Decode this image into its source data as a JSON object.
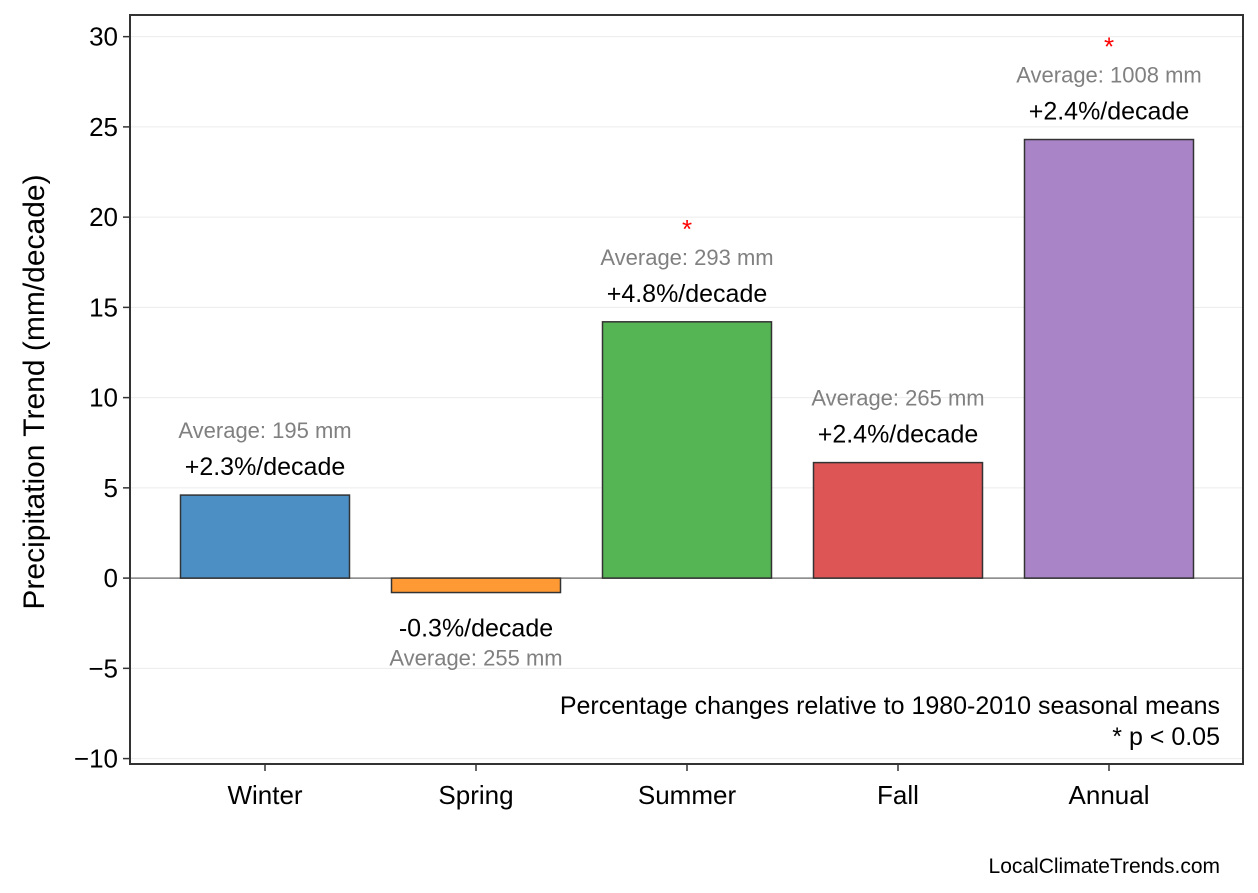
{
  "chart_data": {
    "type": "bar",
    "categories": [
      "Winter",
      "Spring",
      "Summer",
      "Fall",
      "Annual"
    ],
    "values": [
      4.6,
      -0.8,
      14.2,
      6.4,
      24.3
    ],
    "colors": [
      "#4b8fc4",
      "#ff9933",
      "#55b555",
      "#dd5555",
      "#a985c8"
    ],
    "percent_labels": [
      "+2.3%/decade",
      "-0.3%/decade",
      "+4.8%/decade",
      "+2.4%/decade",
      "+2.4%/decade"
    ],
    "average_labels": [
      "Average: 195 mm",
      "Average: 255 mm",
      "Average: 293 mm",
      "Average: 265 mm",
      "Average: 1008 mm"
    ],
    "significant": [
      false,
      false,
      true,
      false,
      true
    ],
    "significance_marker": "*",
    "significance_color": "#ff0000",
    "ylabel": "Precipitation Trend (mm/decade)",
    "xlabel": "",
    "ylim": [
      -10.3,
      31.2
    ],
    "yticks": [
      -10,
      -5,
      0,
      5,
      10,
      15,
      20,
      25,
      30
    ],
    "ytick_labels": [
      "−10",
      "−5",
      "0",
      "5",
      "10",
      "15",
      "20",
      "25",
      "30"
    ],
    "grid": true,
    "zero_line": true,
    "notes": [
      "Percentage changes relative to 1980-2010 seasonal means",
      "* p < 0.05"
    ]
  },
  "footer": {
    "credit": "LocalClimateTrends.com"
  }
}
